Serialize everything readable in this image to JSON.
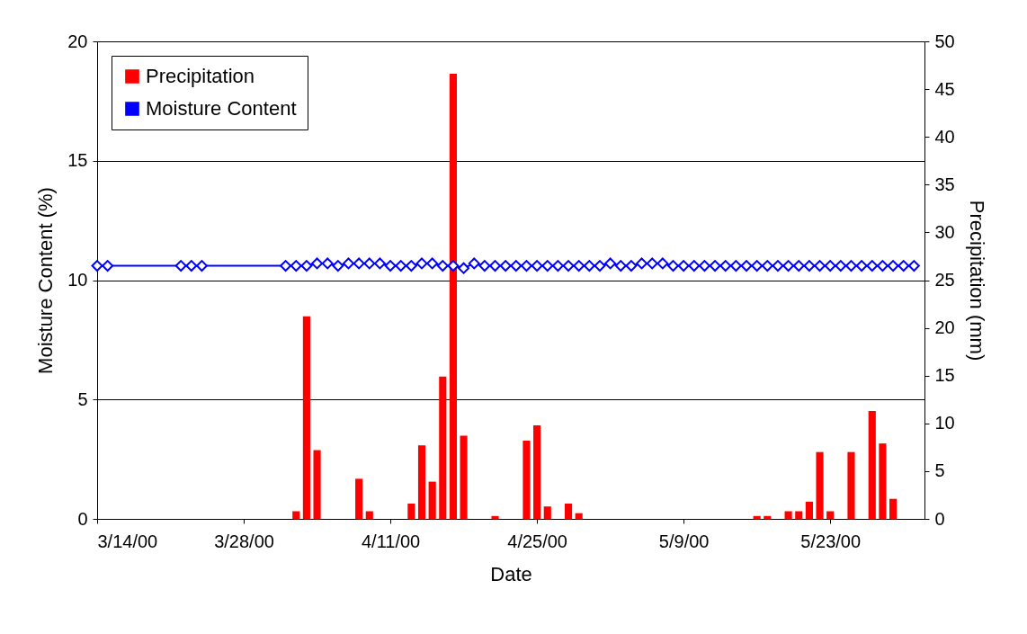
{
  "chart_data": {
    "type": "bar",
    "xlabel": "Date",
    "ylabel": "Moisture Content (%)",
    "y2label": "Precipitation (mm)",
    "xlim": [
      "2000-03-14",
      "2000-06-01"
    ],
    "xticks": [
      {
        "value": "2000-03-14",
        "label": "3/14/00"
      },
      {
        "value": "2000-03-28",
        "label": "3/28/00"
      },
      {
        "value": "2000-04-11",
        "label": "4/11/00"
      },
      {
        "value": "2000-04-25",
        "label": "4/25/00"
      },
      {
        "value": "2000-05-09",
        "label": "5/9/00"
      },
      {
        "value": "2000-05-23",
        "label": "5/23/00"
      }
    ],
    "ylim": [
      0,
      20
    ],
    "yticks": [
      0,
      5,
      10,
      15,
      20
    ],
    "y2lim": [
      0,
      50
    ],
    "y2ticks": [
      0,
      5,
      10,
      15,
      20,
      25,
      30,
      35,
      40,
      45,
      50
    ],
    "grid": "y",
    "legend": "top left",
    "series": [
      {
        "name": "Precipitation",
        "axis": "y2",
        "color": "#ff0000",
        "x": [
          "2000-04-02",
          "2000-04-03",
          "2000-04-04",
          "2000-04-08",
          "2000-04-09",
          "2000-04-13",
          "2000-04-14",
          "2000-04-15",
          "2000-04-16",
          "2000-04-17",
          "2000-04-18",
          "2000-04-21",
          "2000-04-24",
          "2000-04-25",
          "2000-04-26",
          "2000-04-28",
          "2000-04-29",
          "2000-05-16",
          "2000-05-17",
          "2000-05-19",
          "2000-05-20",
          "2000-05-21",
          "2000-05-22",
          "2000-05-23",
          "2000-05-25",
          "2000-05-27",
          "2000-05-28",
          "2000-05-29"
        ],
        "values": [
          0.8,
          21.2,
          7.2,
          4.2,
          0.8,
          1.6,
          7.7,
          3.9,
          14.9,
          46.6,
          8.7,
          0.3,
          8.2,
          9.8,
          1.3,
          1.6,
          0.6,
          0.3,
          0.3,
          0.8,
          0.8,
          1.8,
          7.0,
          0.8,
          7.0,
          11.3,
          7.9,
          2.1
        ]
      },
      {
        "name": "Moisture Content",
        "type": "line",
        "marker": "diamond",
        "line_style": "solid",
        "color": "#0000ff",
        "x": [
          "2000-03-14",
          "2000-03-15",
          "2000-03-22",
          "2000-03-23",
          "2000-03-24",
          "2000-04-01",
          "2000-04-02",
          "2000-04-03",
          "2000-04-04",
          "2000-04-05",
          "2000-04-06",
          "2000-04-07",
          "2000-04-08",
          "2000-04-09",
          "2000-04-10",
          "2000-04-11",
          "2000-04-12",
          "2000-04-13",
          "2000-04-14",
          "2000-04-15",
          "2000-04-16",
          "2000-04-17",
          "2000-04-18",
          "2000-04-19",
          "2000-04-20",
          "2000-04-21",
          "2000-04-22",
          "2000-04-23",
          "2000-04-24",
          "2000-04-25",
          "2000-04-26",
          "2000-04-27",
          "2000-04-28",
          "2000-04-29",
          "2000-04-30",
          "2000-05-01",
          "2000-05-02",
          "2000-05-03",
          "2000-05-04",
          "2000-05-05",
          "2000-05-06",
          "2000-05-07",
          "2000-05-08",
          "2000-05-09",
          "2000-05-10",
          "2000-05-11",
          "2000-05-12",
          "2000-05-13",
          "2000-05-14",
          "2000-05-15",
          "2000-05-16",
          "2000-05-17",
          "2000-05-18",
          "2000-05-19",
          "2000-05-20",
          "2000-05-21",
          "2000-05-22",
          "2000-05-23",
          "2000-05-24",
          "2000-05-25",
          "2000-05-26",
          "2000-05-27",
          "2000-05-28",
          "2000-05-29",
          "2000-05-30",
          "2000-05-31"
        ],
        "values": [
          10.6,
          10.6,
          10.6,
          10.6,
          10.6,
          10.6,
          10.6,
          10.6,
          10.7,
          10.7,
          10.6,
          10.7,
          10.7,
          10.7,
          10.7,
          10.6,
          10.6,
          10.6,
          10.7,
          10.7,
          10.6,
          10.6,
          10.5,
          10.7,
          10.6,
          10.6,
          10.6,
          10.6,
          10.6,
          10.6,
          10.6,
          10.6,
          10.6,
          10.6,
          10.6,
          10.6,
          10.7,
          10.6,
          10.6,
          10.7,
          10.7,
          10.7,
          10.6,
          10.6,
          10.6,
          10.6,
          10.6,
          10.6,
          10.6,
          10.6,
          10.6,
          10.6,
          10.6,
          10.6,
          10.6,
          10.6,
          10.6,
          10.6,
          10.6,
          10.6,
          10.6,
          10.6,
          10.6,
          10.6,
          10.6,
          10.6
        ]
      }
    ]
  }
}
